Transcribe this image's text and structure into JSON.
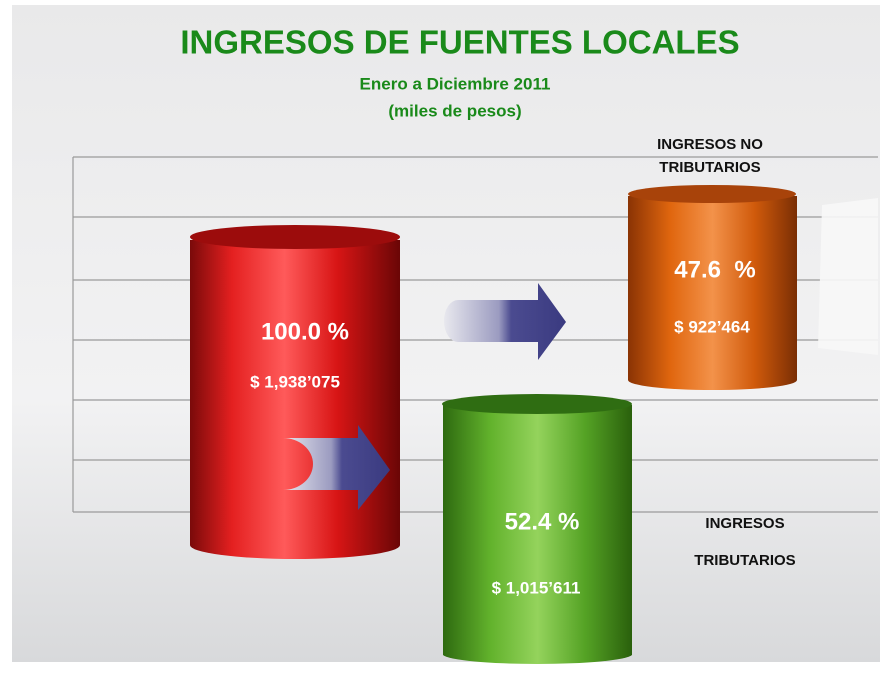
{
  "header": {
    "title": "INGRESOS DE FUENTES LOCALES",
    "subtitle": "Enero a Diciembre 2011",
    "units": "(miles de pesos)"
  },
  "cylinders": [
    {
      "percent": "100.0 %",
      "amount": "$ 1,938’075"
    },
    {
      "label": [
        "INGRESOS NO",
        "TRIBUTARIOS"
      ],
      "percent": "47.6  %",
      "amount": "$ 922’464"
    },
    {
      "label": [
        "INGRESOS",
        "TRIBUTARIOS"
      ],
      "percent": "52.4 %",
      "amount": "$ 1,015’611"
    }
  ]
}
